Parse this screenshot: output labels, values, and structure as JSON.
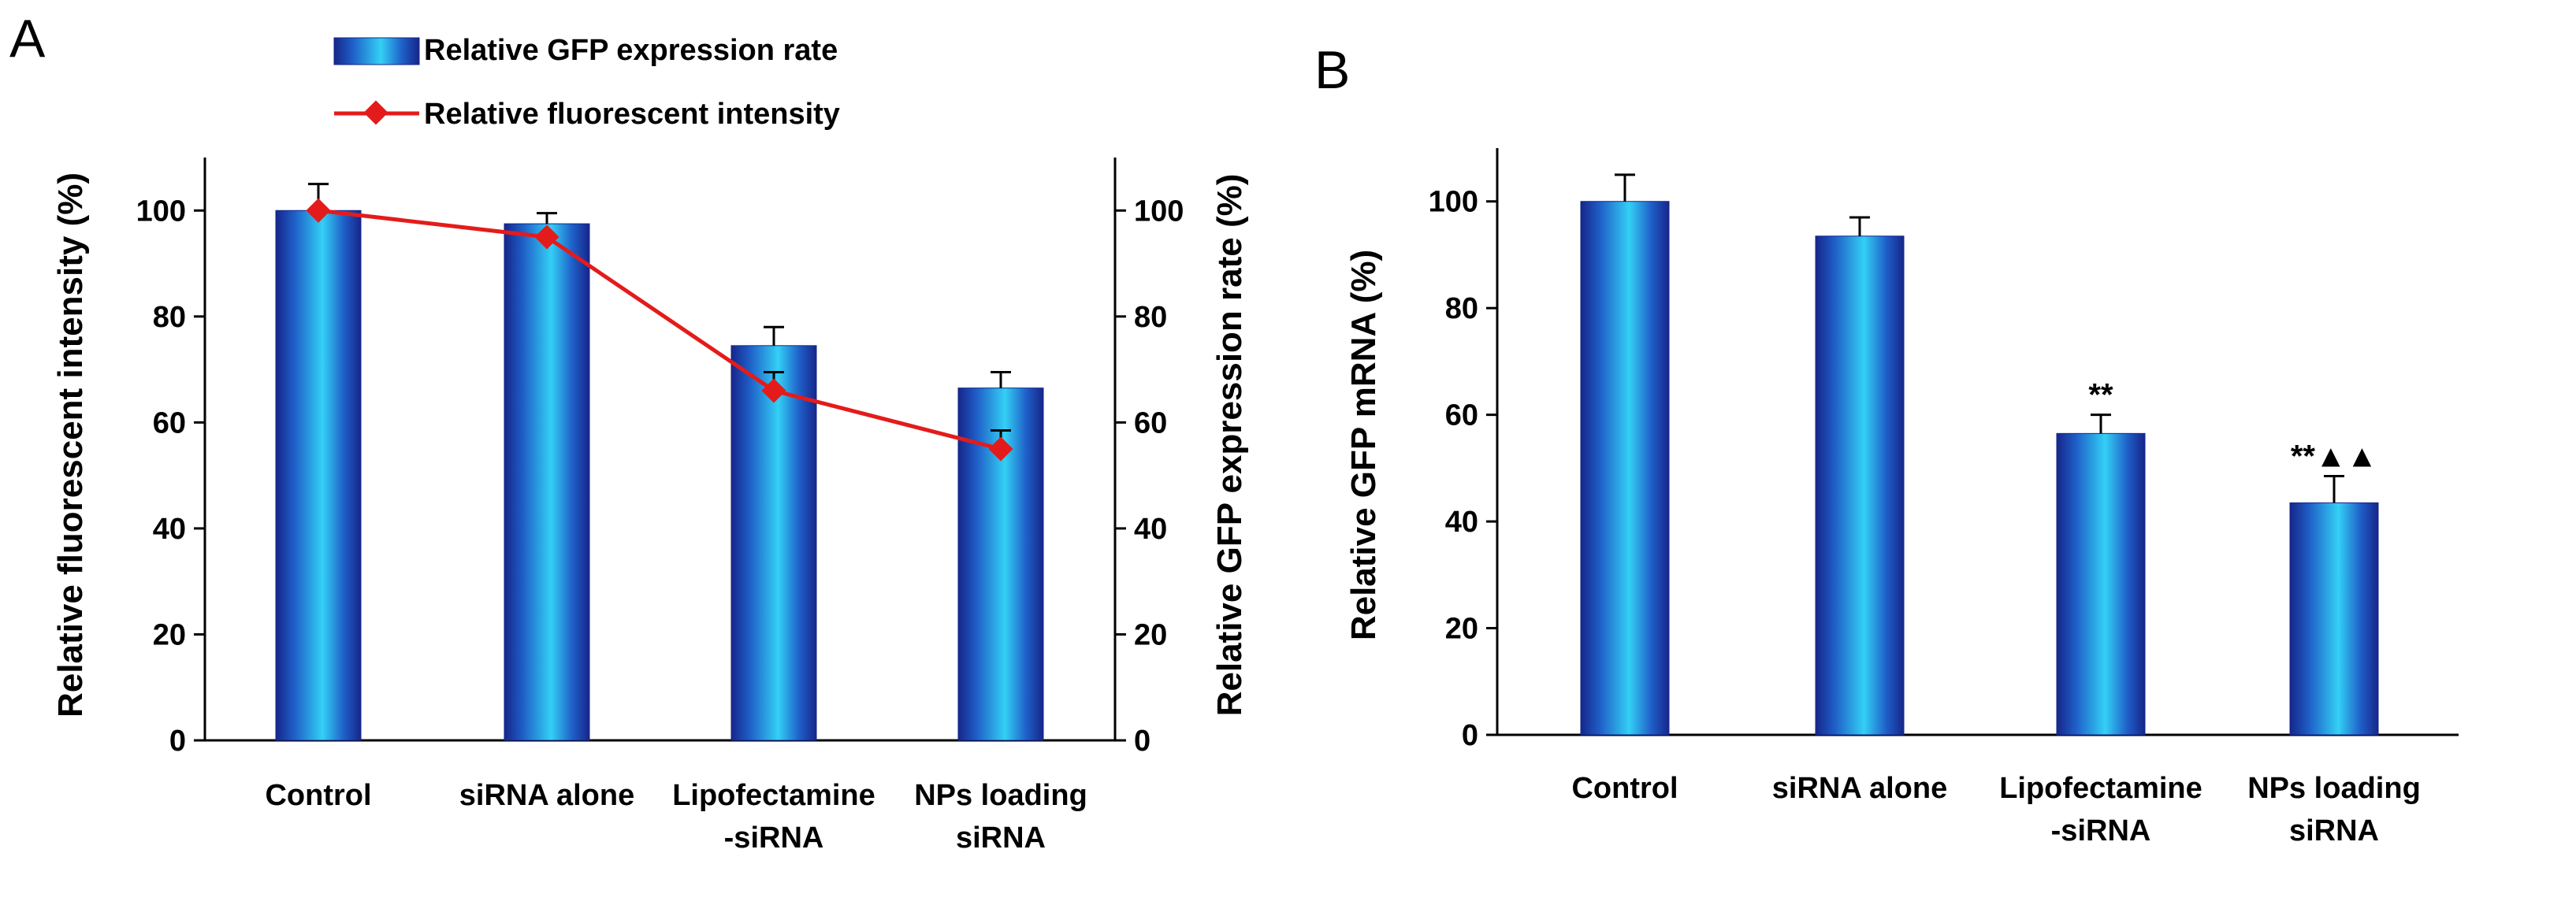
{
  "chart_data": [
    {
      "type": "bar",
      "panel": "A",
      "categories": [
        [
          "Control"
        ],
        [
          "siRNA alone"
        ],
        [
          "Lipofectamine",
          "-siRNA"
        ],
        [
          "NPs loading",
          "siRNA"
        ]
      ],
      "series": [
        {
          "name": "Relative GFP expression rate",
          "kind": "bar",
          "axis": "right",
          "values": [
            100,
            97.5,
            74.5,
            66.5
          ],
          "errors": [
            5,
            2,
            3.5,
            3
          ]
        },
        {
          "name": "Relative fluorescent intensity",
          "kind": "line",
          "axis": "left",
          "values": [
            100,
            95,
            66,
            55
          ],
          "errors": [
            0,
            0,
            3.5,
            3.5
          ]
        }
      ],
      "ylabel": "Relative fluorescent intensity (%)",
      "y2label": "Relative GFP expression rate (%)",
      "ylim": [
        0,
        110
      ],
      "yticks": [
        0,
        20,
        40,
        60,
        80,
        100
      ],
      "legend": "top-center",
      "grid": false
    },
    {
      "type": "bar",
      "panel": "B",
      "categories": [
        [
          "Control"
        ],
        [
          "siRNA alone"
        ],
        [
          "Lipofectamine",
          "-siRNA"
        ],
        [
          "NPs loading",
          "siRNA"
        ]
      ],
      "series": [
        {
          "name": "Relative GFP mRNA",
          "kind": "bar",
          "values": [
            100,
            93.5,
            56.5,
            43.5
          ],
          "errors": [
            5,
            3.5,
            3.5,
            5
          ]
        }
      ],
      "annotations": [
        "",
        "",
        "**",
        "**▲▲"
      ],
      "ylabel": "Relative GFP mRNA (%)",
      "ylim": [
        0,
        110
      ],
      "yticks": [
        0,
        20,
        40,
        60,
        80,
        100
      ],
      "grid": false
    }
  ],
  "panel_labels": {
    "a": "A",
    "b": "B"
  },
  "legend": {
    "bar_label": "Relative GFP expression rate",
    "line_label": "Relative fluorescent intensity"
  },
  "colors": {
    "bar_dark": "#16268a",
    "bar_mid": "#1d6fd6",
    "bar_light": "#33d0f5",
    "line": "#e41b1b",
    "axis": "#000000"
  }
}
